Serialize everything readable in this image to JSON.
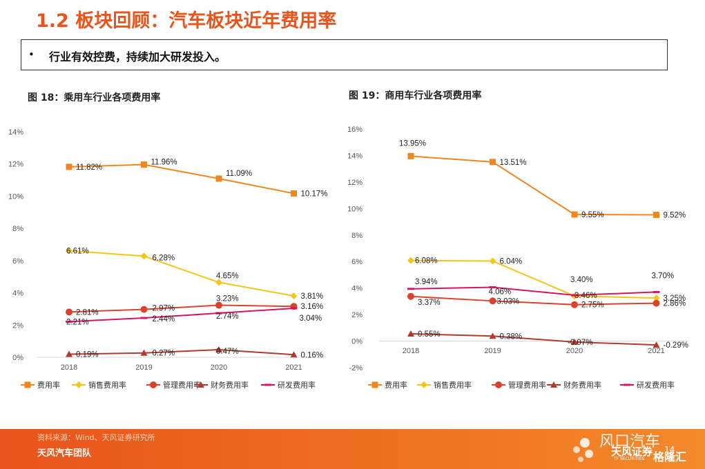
{
  "page": {
    "title": "1.2 板块回顾：汽车板块近年费用率",
    "bullet": "行业有效控费，持续加大研发投入。",
    "bullet_marker": "•"
  },
  "footer": {
    "source": "资料来源：Wind、天风证券研究所",
    "team": "天风汽车团队",
    "page_number": "14",
    "watermark_main": "风口汽车",
    "watermark_brand": "天风证券",
    "watermark_brand_en": "TF SECURITIES",
    "watermark_gelonghui": "格隆汇"
  },
  "colors": {
    "accent": "#e8541b",
    "费用率": "#f0861e",
    "销售费用率": "#f5c518",
    "管理费用率": "#d9422b",
    "财务费用率": "#b03a2e",
    "研发费用率": "#d6145f"
  },
  "chart_data": [
    {
      "type": "line",
      "title": "图 18：乘用车行业各项费用率",
      "categories": [
        "2018",
        "2019",
        "2020",
        "2021"
      ],
      "ylim": [
        0,
        14
      ],
      "yticks": [
        "0%",
        "2%",
        "4%",
        "6%",
        "8%",
        "10%",
        "12%",
        "14%"
      ],
      "grid": true,
      "legend": "bottom",
      "series": [
        {
          "name": "费用率",
          "marker": "square",
          "values": [
            11.82,
            11.96,
            11.09,
            10.17
          ],
          "labels": [
            "11.82%",
            "11.96%",
            "11.09%",
            "10.17%"
          ]
        },
        {
          "name": "销售费用率",
          "marker": "diamond",
          "values": [
            6.61,
            6.28,
            4.65,
            3.81
          ],
          "labels": [
            "6.61%",
            "6.28%",
            "4.65%",
            "3.81%"
          ]
        },
        {
          "name": "管理费用率",
          "marker": "circle",
          "values": [
            2.81,
            2.97,
            3.23,
            3.16
          ],
          "labels": [
            "2.81%",
            "2.97%",
            "3.23%",
            "3.16%"
          ]
        },
        {
          "name": "财务费用率",
          "marker": "triangle",
          "values": [
            0.19,
            0.27,
            0.47,
            0.16
          ],
          "labels": [
            "0.19%",
            "0.27%",
            "0.47%",
            "0.16%"
          ]
        },
        {
          "name": "研发费用率",
          "marker": "dash",
          "values": [
            2.21,
            2.44,
            2.74,
            3.04
          ],
          "labels": [
            "2.21%",
            "2.44%",
            "2.74%",
            "3.04%"
          ]
        }
      ]
    },
    {
      "type": "line",
      "title": "图 19：商用车行业各项费用率",
      "categories": [
        "2018",
        "2019",
        "2020",
        "2021"
      ],
      "ylim": [
        -2,
        16
      ],
      "yticks": [
        "-2%",
        "0%",
        "2%",
        "4%",
        "6%",
        "8%",
        "10%",
        "12%",
        "14%",
        "16%"
      ],
      "grid": true,
      "legend": "bottom",
      "series": [
        {
          "name": "费用率",
          "marker": "square",
          "values": [
            13.95,
            13.51,
            9.55,
            9.52
          ],
          "labels": [
            "13.95%",
            "13.51%",
            "9.55%",
            "9.52%"
          ]
        },
        {
          "name": "销售费用率",
          "marker": "diamond",
          "values": [
            6.08,
            6.04,
            3.4,
            3.25
          ],
          "labels": [
            "6.08%",
            "6.04%",
            "3.40%",
            "3.25%"
          ]
        },
        {
          "name": "管理费用率",
          "marker": "circle",
          "values": [
            3.37,
            3.03,
            2.75,
            2.86
          ],
          "labels": [
            "3.37%",
            "3.03%",
            "2.75%",
            "2.86%"
          ]
        },
        {
          "name": "财务费用率",
          "marker": "triangle",
          "values": [
            0.55,
            0.38,
            -0.07,
            -0.29
          ],
          "labels": [
            "0.55%",
            "0.38%",
            "-0.07%",
            "-0.29%"
          ]
        },
        {
          "name": "研发费用率",
          "marker": "dash",
          "values": [
            3.94,
            4.06,
            3.46,
            3.7
          ],
          "labels": [
            "3.94%",
            "4.06%",
            "3.46%",
            "3.70%"
          ]
        }
      ]
    }
  ]
}
